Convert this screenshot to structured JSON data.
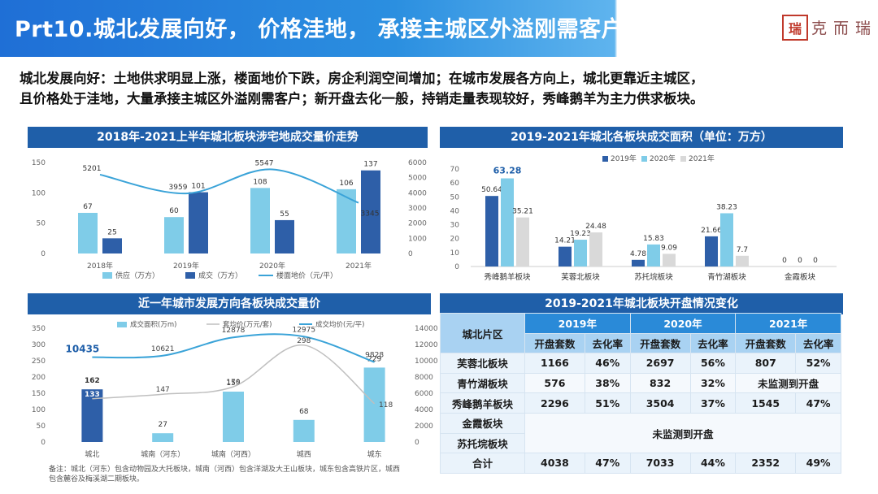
{
  "header": {
    "title": "Prt10.城北发展向好， 价格洼地， 承接主城区外溢刚需客户",
    "logo_mark": "瑞",
    "logo_text": "克而瑞"
  },
  "summary": {
    "line1": "城北发展向好：土地供求明显上涨，楼面地价下跌，房企利润空间增加；在城市发展各方向上，城北更靠近主城区，",
    "line2": "且价格处于洼地，大量承接主城区外溢刚需客户；新开盘去化一般，持销走量表现较好，秀峰鹅羊为主力供求板块。"
  },
  "colors": {
    "light_blue": "#7fcce8",
    "dark_blue": "#2e5fa8",
    "line_blue": "#3aa3d8",
    "gray": "#d9d9d9",
    "line_gray": "#bfbfbf"
  },
  "chart_data": [
    {
      "type": "bar",
      "title": "2018年-2021上半年城北板块涉宅地成交量价走势",
      "categories": [
        "2018年",
        "2019年",
        "2020年",
        "2021年"
      ],
      "series": [
        {
          "name": "供应（万方）",
          "values": [
            67,
            60,
            108,
            106
          ]
        },
        {
          "name": "成交（万方）",
          "values": [
            25,
            101,
            55,
            137
          ]
        },
        {
          "name": "楼面地价（元/平）",
          "type": "line",
          "axis": "right",
          "values": [
            5201,
            3959,
            5547,
            3345
          ]
        }
      ],
      "y_ticks": [
        "0",
        "50",
        "100",
        "150"
      ],
      "ylim": [
        0,
        150
      ],
      "y2_ticks": [
        "0",
        "1000",
        "2000",
        "3000",
        "4000",
        "5000",
        "6000"
      ],
      "y2lim": [
        0,
        6000
      ],
      "legend": "bottom"
    },
    {
      "type": "bar",
      "title": "2019-2021年城北各板块成交面积（单位：万方）",
      "categories": [
        "秀峰鹅羊板块",
        "芙蓉北板块",
        "苏托垸板块",
        "青竹湖板块",
        "金霞板块"
      ],
      "series": [
        {
          "name": "2019年",
          "values": [
            50.64,
            14.21,
            4.78,
            21.66,
            0
          ]
        },
        {
          "name": "2020年",
          "values": [
            63.28,
            19.23,
            15.83,
            38.23,
            0
          ]
        },
        {
          "name": "2021年",
          "values": [
            35.21,
            24.48,
            9.09,
            7.7,
            0
          ]
        }
      ],
      "y_ticks": [
        "0",
        "10",
        "20",
        "30",
        "40",
        "50",
        "60",
        "70"
      ],
      "ylim": [
        0,
        70
      ],
      "legend": "top-right"
    },
    {
      "type": "bar",
      "title": "近一年城市发展方向各板块成交量价",
      "categories": [
        "城北",
        "城南（河东）",
        "城南（河西）",
        "城西",
        "城东"
      ],
      "series": [
        {
          "name": "成交面积(万m)",
          "values": [
            162,
            27,
            155,
            68,
            229
          ]
        },
        {
          "name": "套均价(万元/套)",
          "type": "line",
          "values": [
            133,
            147,
            170,
            298,
            118
          ]
        },
        {
          "name": "成交均价(元/平)",
          "type": "line",
          "axis": "right",
          "values": [
            10435,
            10621,
            12878,
            12975,
            9828
          ]
        }
      ],
      "y_ticks": [
        "0",
        "50",
        "100",
        "150",
        "200",
        "250",
        "300",
        "350"
      ],
      "ylim": [
        0,
        350
      ],
      "y2_ticks": [
        "0",
        "2000",
        "4000",
        "6000",
        "8000",
        "10000",
        "12000",
        "14000"
      ],
      "y2lim": [
        0,
        14000
      ],
      "legend": "top"
    },
    {
      "type": "table",
      "title": "2019-2021年城北板块开盘情况变化",
      "row_header": "城北片区",
      "years": [
        "2019年",
        "2020年",
        "2021年"
      ],
      "sub_headers": [
        "开盘套数",
        "去化率"
      ],
      "rows": [
        {
          "name": "芙蓉北板块",
          "cells": [
            "1166",
            "46%",
            "2697",
            "56%",
            "807",
            "52%"
          ]
        },
        {
          "name": "青竹湖板块",
          "cells": [
            "576",
            "38%",
            "832",
            "32%"
          ],
          "merged": "未监测到开盘"
        },
        {
          "name": "秀峰鹅羊板块",
          "cells": [
            "2296",
            "51%",
            "3504",
            "37%",
            "1545",
            "47%"
          ]
        },
        {
          "name": "金霞板块"
        },
        {
          "name": "苏托垸板块"
        },
        {
          "name": "合计",
          "cells": [
            "4038",
            "47%",
            "7033",
            "44%",
            "2352",
            "49%"
          ]
        }
      ],
      "merged_note": "未监测到开盘"
    }
  ],
  "footnote": "备注：城北（河东）包含动物园及大托板块，城南（河西）包含洋湖及大王山板块，城东包含高铁片区，城西包含麓谷及梅溪湖二期板块。"
}
